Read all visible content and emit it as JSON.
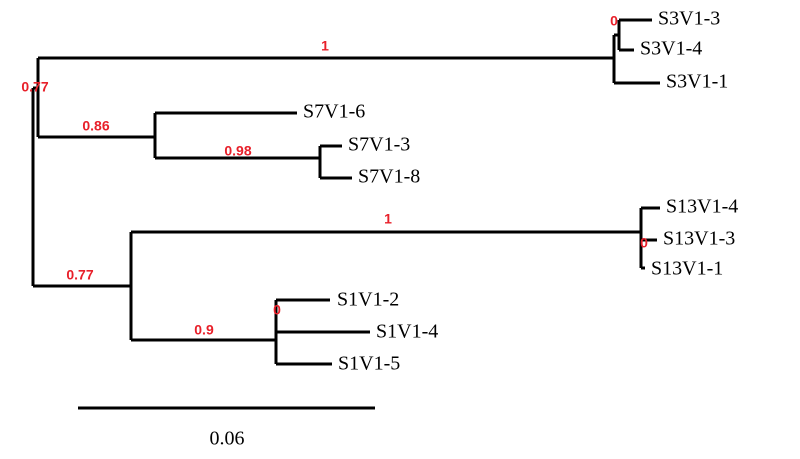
{
  "tree": {
    "leaves": [
      "S3V1-3",
      "S3V1-4",
      "S3V1-1",
      "S7V1-6",
      "S7V1-3",
      "S7V1-8",
      "S13V1-4",
      "S13V1-3",
      "S13V1-1",
      "S1V1-2",
      "S1V1-4",
      "S1V1-5"
    ],
    "supports": [
      1,
      0.77,
      0.86,
      0.98,
      0,
      1,
      0,
      0.77,
      0.9,
      0
    ],
    "scale_bar": {
      "label": 0.06
    }
  }
}
